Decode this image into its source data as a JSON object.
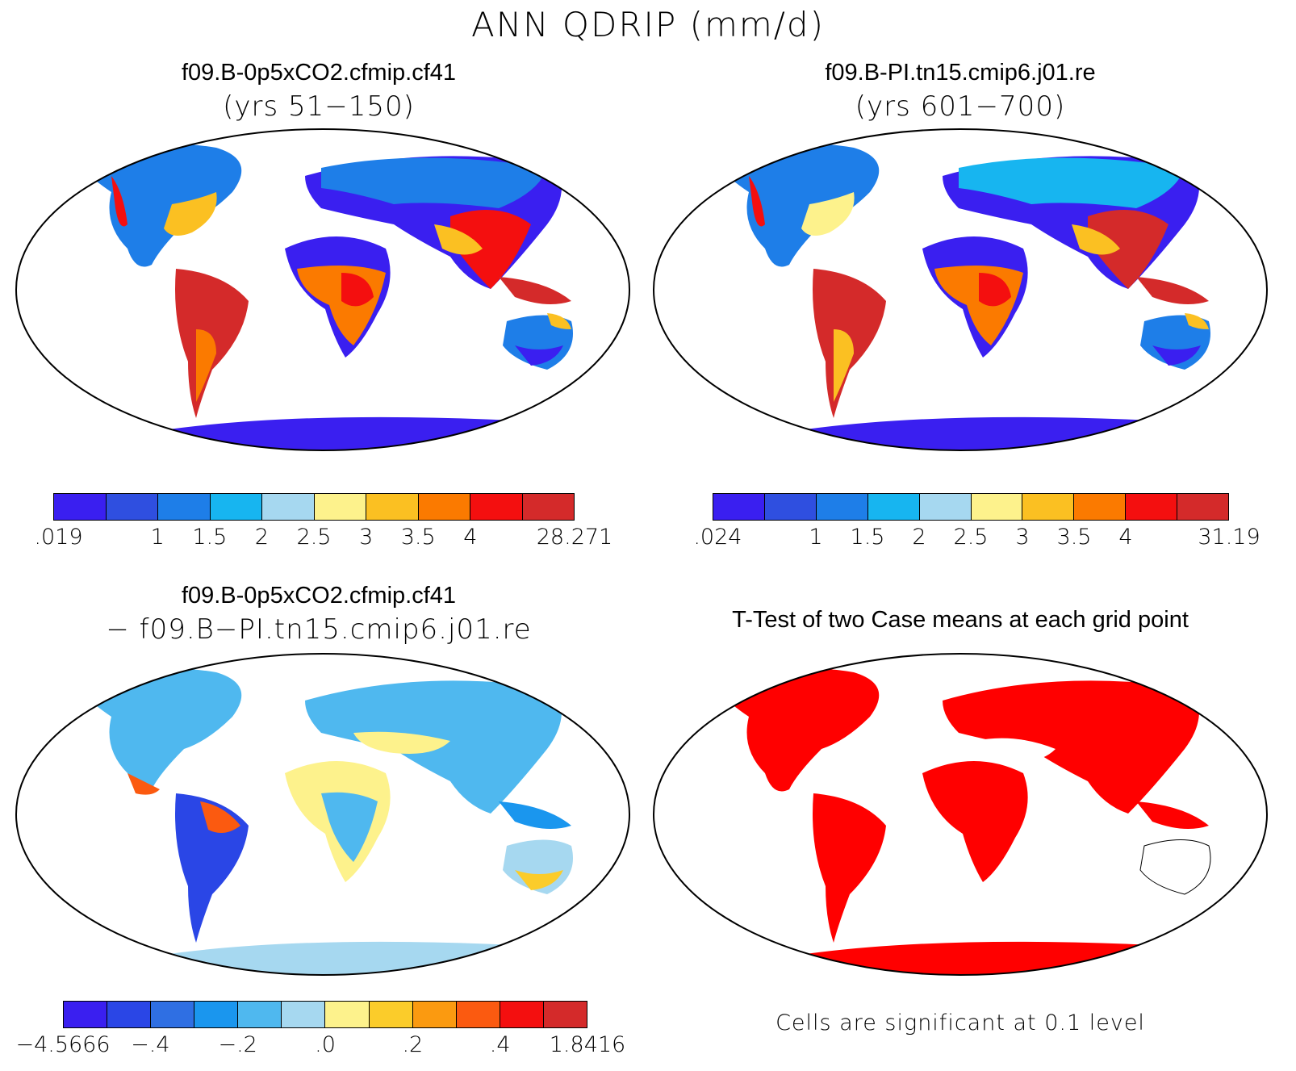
{
  "figure": {
    "title": "ANN QDRIP (mm/d)"
  },
  "panels": [
    {
      "title": "f09.B-0p5xCO2.cfmip.cf41",
      "subtitle": "(yrs 51−150)"
    },
    {
      "title": "f09.B-PI.tn15.cmip6.j01.re",
      "subtitle": "(yrs 601−700)"
    },
    {
      "title": "f09.B-0p5xCO2.cfmip.cf41",
      "subtitle": "− f09.B−PI.tn15.cmip6.j01.re"
    },
    {
      "title": "T-Test of two Case means at each grid point",
      "subtitle": ""
    }
  ],
  "colorbars": {
    "case1": {
      "colors": [
        "#3a1ff0",
        "#2f4fe0",
        "#1e7ee8",
        "#17b5f0",
        "#a6d8f0",
        "#fdf28c",
        "#fbc022",
        "#fb7a00",
        "#f40f0f",
        "#d42a2a"
      ],
      "ticks": [
        ".019",
        "1",
        "1.5",
        "2",
        "2.5",
        "3",
        "3.5",
        "4",
        "28.271"
      ]
    },
    "case2": {
      "colors": [
        "#3a1ff0",
        "#2f4fe0",
        "#1e7ee8",
        "#17b5f0",
        "#a6d8f0",
        "#fdf28c",
        "#fbc022",
        "#fb7a00",
        "#f40f0f",
        "#d42a2a"
      ],
      "ticks": [
        ".024",
        "1",
        "1.5",
        "2",
        "2.5",
        "3",
        "3.5",
        "4",
        "31.19"
      ]
    },
    "diff": {
      "colors": [
        "#3a1ff0",
        "#2a46e6",
        "#2f6fe3",
        "#1a96ee",
        "#4fb8ef",
        "#a6d8f0",
        "#fdf28c",
        "#fbcc2a",
        "#fb9a10",
        "#fb5a10",
        "#f40f0f",
        "#d42a2a"
      ],
      "ticks": [
        "−4.5666",
        "−.4",
        "−.2",
        ".0",
        ".2",
        ".4",
        "1.8416"
      ]
    }
  },
  "significance_note": "Cells are significant at 0.1 level",
  "map_colors": {
    "deep_dry": "#3a1ff0",
    "dry": "#1e7ee8",
    "light": "#17b5f0",
    "mid": "#fdf28c",
    "wet": "#fb7a00",
    "very_wet": "#d42a2a",
    "significant": "#ff0000"
  }
}
